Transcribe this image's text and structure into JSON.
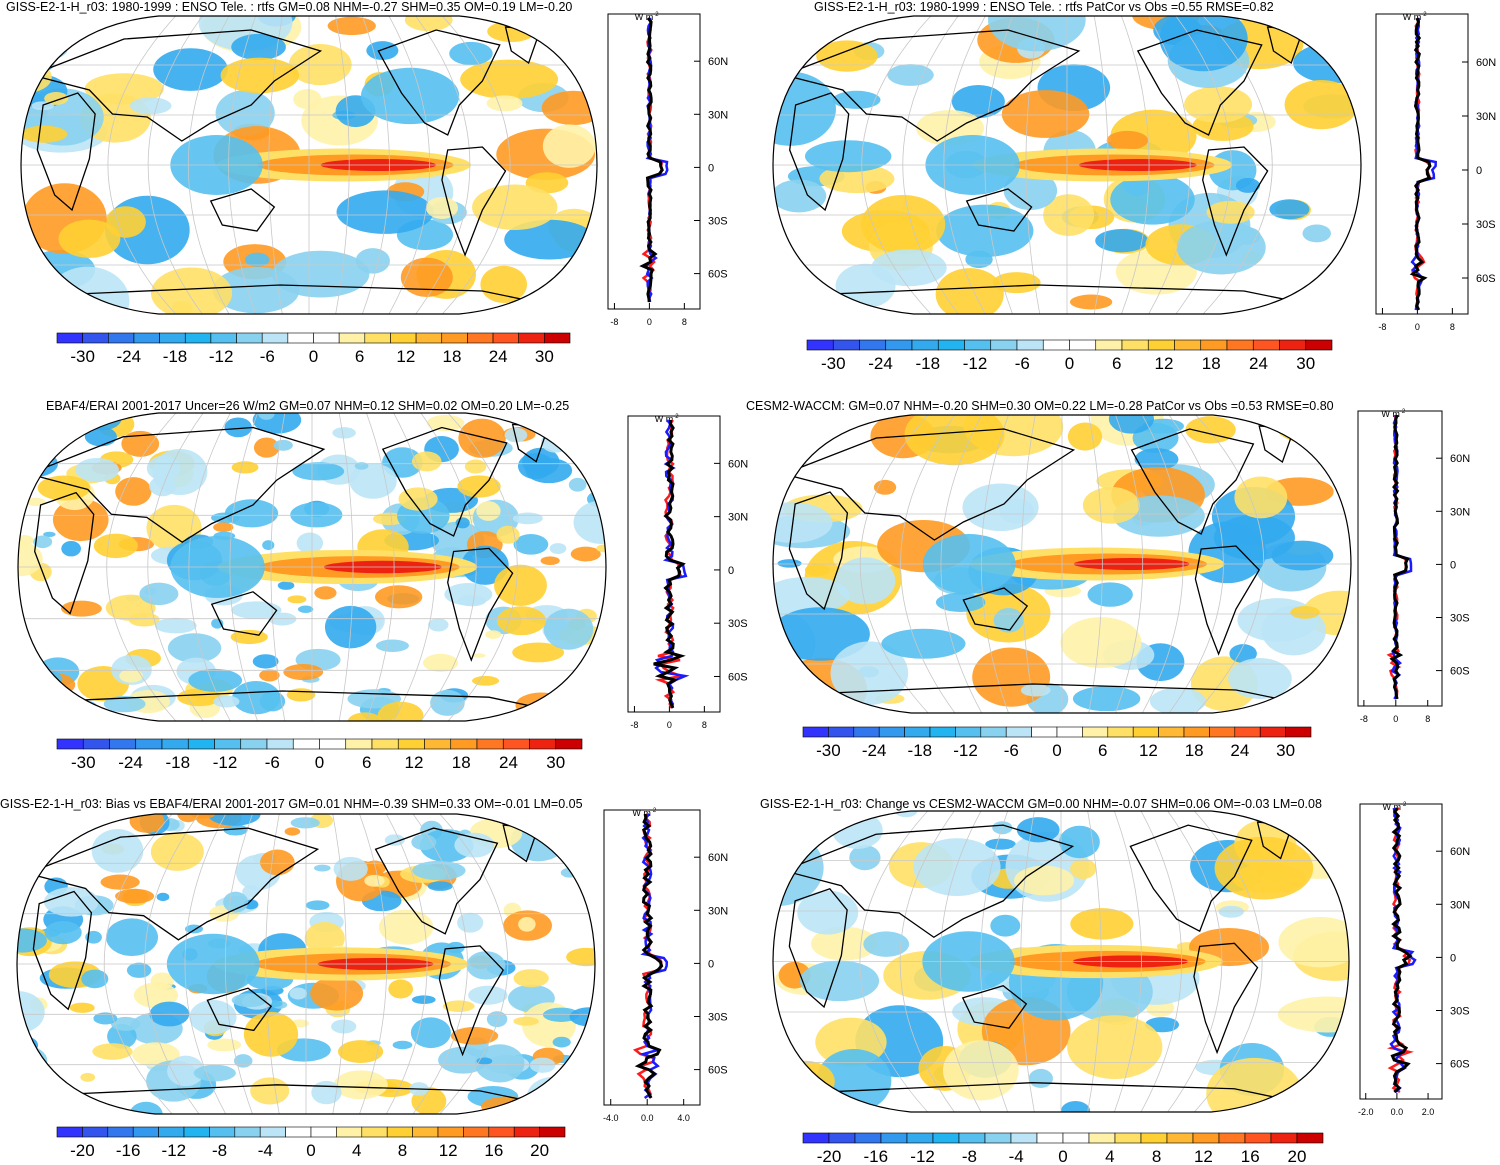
{
  "colorbar_colors": {
    "large": [
      "#3333ff",
      "#3355ee",
      "#3377ee",
      "#3399ee",
      "#33aaee",
      "#22b4f0",
      "#55c0f0",
      "#88d2f0",
      "#bbe4f6",
      "#ffffff",
      "#ffffff",
      "#fff2a8",
      "#ffe066",
      "#ffd033",
      "#ffb833",
      "#ff9a22",
      "#ff7722",
      "#ff5522",
      "#ee2211",
      "#cc0000"
    ],
    "small": [
      "#3333ff",
      "#3355ee",
      "#3377ee",
      "#3399ee",
      "#33aaee",
      "#22b4f0",
      "#55c0f0",
      "#88d2f0",
      "#bbe4f6",
      "#ffffff",
      "#ffffff",
      "#fff2a8",
      "#ffe066",
      "#ffd033",
      "#ffb833",
      "#ff9a22",
      "#ff7722",
      "#ff5522",
      "#ee2211",
      "#cc0000"
    ]
  },
  "line_colors": {
    "model": "#000000",
    "obs": "#1b1bff",
    "other": "#ff1b1b"
  },
  "map_colors": {
    "land": "#ffffff",
    "outline": "#000000",
    "grid": "#c8c8c8"
  },
  "profile_latitudes": [
    "60N",
    "30N",
    "0",
    "30S",
    "60S"
  ],
  "profile_unit": "W m",
  "profile_unit_sup": "-2",
  "panels": [
    {
      "id": "p1",
      "title": "GISS-E2-1-H_r03: 1980-1999 : ENSO Tele. : rtfs GM=0.08 NHM=-0.27 SHM=0.35 OM=0.19 LM=-0.20",
      "profile_ticks": [
        "-8",
        "0",
        "8"
      ],
      "colorbar_ticks": [
        "-30",
        "-24",
        "-18",
        "-12",
        "-6",
        "0",
        "6",
        "12",
        "18",
        "24",
        "30"
      ]
    },
    {
      "id": "p2",
      "title": "GISS-E2-1-H_r03: 1980-1999 : ENSO Tele. : rtfs PatCor vs Obs =0.55 RMSE=0.82",
      "profile_ticks": [
        "-8",
        "0",
        "8"
      ],
      "colorbar_ticks": [
        "-30",
        "-24",
        "-18",
        "-12",
        "-6",
        "0",
        "6",
        "12",
        "18",
        "24",
        "30"
      ]
    },
    {
      "id": "p3",
      "title": "EBAF4/ERAI 2001-2017 Uncer=26 W/m2 GM=0.07 NHM=0.12 SHM=0.02 OM=0.20 LM=-0.25",
      "profile_ticks": [
        "-8",
        "0",
        "8"
      ],
      "colorbar_ticks": [
        "-30",
        "-24",
        "-18",
        "-12",
        "-6",
        "0",
        "6",
        "12",
        "18",
        "24",
        "30"
      ]
    },
    {
      "id": "p4",
      "title": "CESM2-WACCM: GM=0.07 NHM=-0.20 SHM=0.30 OM=0.22 LM=-0.28 PatCor vs Obs =0.53 RMSE=0.80",
      "profile_ticks": [
        "-8",
        "0",
        "8"
      ],
      "colorbar_ticks": [
        "-30",
        "-24",
        "-18",
        "-12",
        "-6",
        "0",
        "6",
        "12",
        "18",
        "24",
        "30"
      ]
    },
    {
      "id": "p5",
      "title": "GISS-E2-1-H_r03: Bias vs EBAF4/ERAI 2001-2017 GM=0.01 NHM=-0.39 SHM=0.33 OM=-0.01 LM=0.05",
      "profile_ticks": [
        "-4.0",
        "0.0",
        "4.0"
      ],
      "colorbar_ticks": [
        "-20",
        "-16",
        "-12",
        "-8",
        "-4",
        "0",
        "4",
        "8",
        "12",
        "16",
        "20"
      ]
    },
    {
      "id": "p6",
      "title": "GISS-E2-1-H_r03: Change vs CESM2-WACCM GM=0.00 NHM=-0.07 SHM=0.06 OM=-0.03 LM=0.08",
      "profile_ticks": [
        "-2.0",
        "0.0",
        "2.0"
      ],
      "colorbar_ticks": [
        "-20",
        "-16",
        "-12",
        "-8",
        "-4",
        "0",
        "4",
        "8",
        "12",
        "16",
        "20"
      ]
    }
  ]
}
